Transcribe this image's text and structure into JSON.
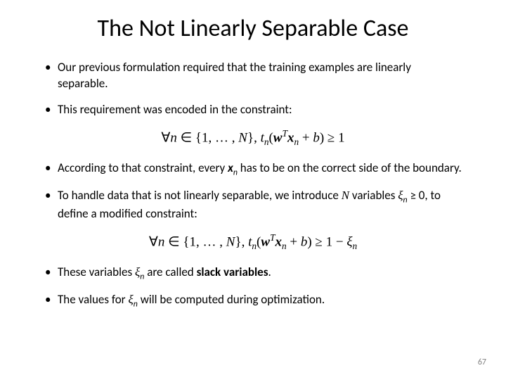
{
  "title": "The Not Linearly Separable Case",
  "bullets": {
    "b1": "Our previous formulation required that the training examples are linearly separable.",
    "b2": "This requirement was encoded in the constraint:",
    "b5_pre": "These variables ",
    "b5_mid": " are called ",
    "b5_bold": "slack variables",
    "b5_post": "."
  },
  "formulas": {
    "f1_forall": "∀",
    "f1_n": "n",
    "f1_in": " ∈ {1, … , ",
    "f1_N": "N",
    "f1_brace": "}, ",
    "f1_t": "t",
    "f1_sub_n": "n",
    "f1_paren_o": "(",
    "f1_w": "w",
    "f1_T": "T",
    "f1_x": "x",
    "f1_plus": " + ",
    "f1_b": "b",
    "f1_paren_c": ")",
    "f1_geq": " ≥ 1",
    "f2_geq": " ≥ 1 − ",
    "f2_xi": "ξ"
  },
  "page_number": "67",
  "styling": {
    "title_fontsize": 34,
    "body_fontsize": 17,
    "formula_fontsize": 19,
    "text_color": "#000000",
    "background_color": "#ffffff",
    "page_num_color": "#7f7f7f",
    "font_family_body": "Calibri",
    "font_family_math": "Cambria Math"
  }
}
